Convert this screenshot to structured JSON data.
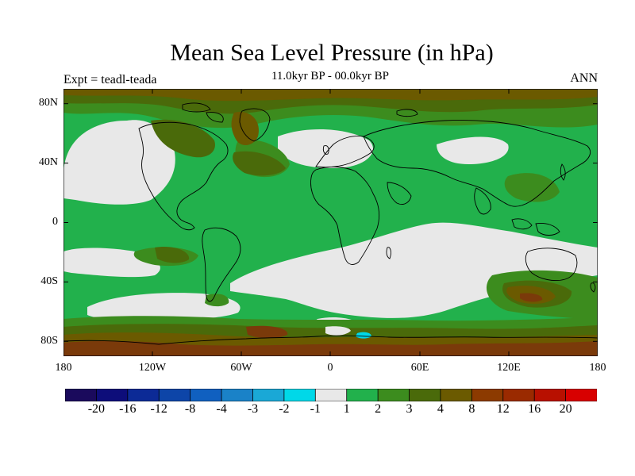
{
  "title": "Mean Sea Level Pressure (in hPa)",
  "subtitle": "11.0kyr BP - 00.0kyr BP",
  "experiment": "Expt = teadl-teada",
  "season": "ANN",
  "map": {
    "projection": "cylindrical equidistant",
    "lat_labels": [
      "80N",
      "40N",
      "0",
      "40S",
      "80S"
    ],
    "lon_labels": [
      "180",
      "120W",
      "60W",
      "0",
      "60E",
      "120E",
      "180"
    ],
    "land_outline_color": "#000000"
  },
  "colorbar": {
    "colors": [
      "#1a0a5c",
      "#0d0d7a",
      "#0c2a96",
      "#0d45a8",
      "#1060c0",
      "#1a82c8",
      "#1aa8d6",
      "#00d8e8",
      "#e8e8e8",
      "#22b14c",
      "#3c8c1e",
      "#4a6a0a",
      "#6b5a00",
      "#8c3a00",
      "#9a2a00",
      "#b81000",
      "#d80000"
    ],
    "labels": [
      "-20",
      "-16",
      "-12",
      "-8",
      "-4",
      "-3",
      "-2",
      "-1",
      "1",
      "2",
      "3",
      "4",
      "8",
      "12",
      "16",
      "20"
    ]
  },
  "palette": {
    "neutral": "#e8e8e8",
    "light_green": "#22b14c",
    "mid_green": "#3c8c1e",
    "olive": "#4a6a0a",
    "brown": "#6b5a00",
    "dark_brown": "#7a3a0a",
    "cyan": "#00d8e8"
  }
}
